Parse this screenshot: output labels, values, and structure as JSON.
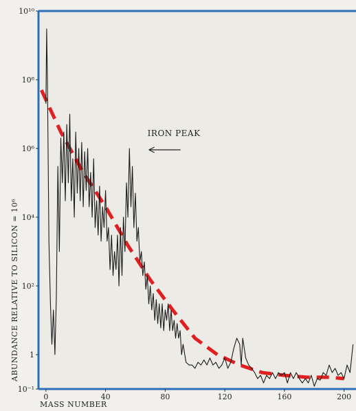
{
  "chart_data": {
    "type": "line",
    "title": "",
    "xlabel": "MASS NUMBER",
    "ylabel": "ABUNDANCE RELATIVE TO SILICON = 10⁶",
    "x_scale": "linear",
    "y_scale": "log",
    "xlim": [
      -5,
      208
    ],
    "ylim": [
      0.1,
      10000000000
    ],
    "grid": false,
    "x_ticks": [
      {
        "value": 0,
        "label": "0"
      },
      {
        "value": 40,
        "label": "40"
      },
      {
        "value": 80,
        "label": "80"
      },
      {
        "value": 120,
        "label": "120"
      },
      {
        "value": 160,
        "label": "160"
      },
      {
        "value": 200,
        "label": "200"
      }
    ],
    "y_ticks": [
      {
        "value": 0.1,
        "label": "10⁻¹"
      },
      {
        "value": 1,
        "label": "1"
      },
      {
        "value": 100,
        "label": "10²"
      },
      {
        "value": 10000,
        "label": "10⁴"
      },
      {
        "value": 1000000,
        "label": "10⁶"
      },
      {
        "value": 100000000,
        "label": "10⁸"
      },
      {
        "value": 10000000000,
        "label": "10¹⁰"
      }
    ],
    "series": [
      {
        "style": "solid",
        "color": "#1a1a1a",
        "points": [
          [
            0,
            20000000
          ],
          [
            0.5,
            3000000000
          ],
          [
            1,
            100000000
          ],
          [
            2,
            2000
          ],
          [
            3,
            30
          ],
          [
            4,
            2
          ],
          [
            5,
            20
          ],
          [
            6,
            1
          ],
          [
            7,
            50
          ],
          [
            8,
            300000
          ],
          [
            9,
            1000
          ],
          [
            10,
            2000000
          ],
          [
            11,
            100000
          ],
          [
            12,
            3000000
          ],
          [
            13,
            30000
          ],
          [
            14,
            5000000
          ],
          [
            15,
            100000
          ],
          [
            16,
            10000000
          ],
          [
            17,
            30000
          ],
          [
            18,
            500000
          ],
          [
            19,
            10000
          ],
          [
            20,
            3000000
          ],
          [
            21,
            50000
          ],
          [
            22,
            1000000
          ],
          [
            23,
            30000
          ],
          [
            24,
            1500000
          ],
          [
            25,
            20000
          ],
          [
            26,
            800000
          ],
          [
            27,
            60000
          ],
          [
            28,
            1000000
          ],
          [
            29,
            20000
          ],
          [
            30,
            200000
          ],
          [
            31,
            10000
          ],
          [
            32,
            500000
          ],
          [
            33,
            5000
          ],
          [
            34,
            30000
          ],
          [
            35,
            3000
          ],
          [
            36,
            80000
          ],
          [
            37,
            2000
          ],
          [
            38,
            20000
          ],
          [
            39,
            5000
          ],
          [
            40,
            60000
          ],
          [
            41,
            2000
          ],
          [
            42,
            5000
          ],
          [
            43,
            300
          ],
          [
            44,
            3000
          ],
          [
            45,
            200
          ],
          [
            46,
            1000
          ],
          [
            47,
            300
          ],
          [
            48,
            3000
          ],
          [
            49,
            100
          ],
          [
            50,
            5000
          ],
          [
            51,
            200
          ],
          [
            52,
            10000
          ],
          [
            53,
            1000
          ],
          [
            54,
            100000
          ],
          [
            55,
            10000
          ],
          [
            56,
            1000000
          ],
          [
            57,
            20000
          ],
          [
            58,
            300000
          ],
          [
            59,
            5000
          ],
          [
            60,
            50000
          ],
          [
            61,
            2000
          ],
          [
            62,
            5000
          ],
          [
            63,
            500
          ],
          [
            64,
            1000
          ],
          [
            65,
            200
          ],
          [
            66,
            500
          ],
          [
            67,
            80
          ],
          [
            68,
            200
          ],
          [
            69,
            30
          ],
          [
            70,
            100
          ],
          [
            71,
            20
          ],
          [
            72,
            60
          ],
          [
            73,
            10
          ],
          [
            74,
            40
          ],
          [
            75,
            8
          ],
          [
            76,
            30
          ],
          [
            77,
            6
          ],
          [
            78,
            30
          ],
          [
            79,
            5
          ],
          [
            80,
            20
          ],
          [
            81,
            10
          ],
          [
            82,
            30
          ],
          [
            83,
            5
          ],
          [
            84,
            20
          ],
          [
            85,
            5
          ],
          [
            86,
            10
          ],
          [
            87,
            3
          ],
          [
            88,
            8
          ],
          [
            89,
            3
          ],
          [
            90,
            5
          ],
          [
            91,
            1
          ],
          [
            92,
            2
          ],
          [
            94,
            0.6
          ],
          [
            96,
            0.5
          ],
          [
            98,
            0.5
          ],
          [
            100,
            0.4
          ],
          [
            102,
            0.6
          ],
          [
            104,
            0.5
          ],
          [
            106,
            0.7
          ],
          [
            108,
            0.5
          ],
          [
            110,
            0.8
          ],
          [
            112,
            0.5
          ],
          [
            114,
            0.6
          ],
          [
            116,
            0.4
          ],
          [
            118,
            0.5
          ],
          [
            120,
            0.8
          ],
          [
            122,
            0.4
          ],
          [
            124,
            0.6
          ],
          [
            126,
            1.5
          ],
          [
            128,
            3
          ],
          [
            130,
            2
          ],
          [
            131,
            0.5
          ],
          [
            132,
            3
          ],
          [
            134,
            0.8
          ],
          [
            136,
            0.5
          ],
          [
            138,
            0.4
          ],
          [
            140,
            0.3
          ],
          [
            142,
            0.2
          ],
          [
            144,
            0.25
          ],
          [
            146,
            0.15
          ],
          [
            148,
            0.25
          ],
          [
            150,
            0.2
          ],
          [
            152,
            0.3
          ],
          [
            154,
            0.2
          ],
          [
            156,
            0.3
          ],
          [
            158,
            0.25
          ],
          [
            160,
            0.3
          ],
          [
            162,
            0.15
          ],
          [
            164,
            0.3
          ],
          [
            166,
            0.2
          ],
          [
            168,
            0.3
          ],
          [
            170,
            0.2
          ],
          [
            172,
            0.15
          ],
          [
            174,
            0.2
          ],
          [
            176,
            0.15
          ],
          [
            178,
            0.25
          ],
          [
            180,
            0.12
          ],
          [
            182,
            0.2
          ],
          [
            184,
            0.18
          ],
          [
            186,
            0.3
          ],
          [
            188,
            0.25
          ],
          [
            190,
            0.5
          ],
          [
            192,
            0.3
          ],
          [
            194,
            0.4
          ],
          [
            196,
            0.25
          ],
          [
            198,
            0.3
          ],
          [
            200,
            0.2
          ],
          [
            202,
            0.5
          ],
          [
            204,
            0.3
          ],
          [
            206,
            2
          ]
        ]
      },
      {
        "style": "dashed",
        "color": "#e02020",
        "points": [
          [
            -3,
            50000000
          ],
          [
            10,
            3000000
          ],
          [
            25,
            200000
          ],
          [
            40,
            20000
          ],
          [
            55,
            1500
          ],
          [
            70,
            150
          ],
          [
            85,
            20
          ],
          [
            100,
            3
          ],
          [
            115,
            1
          ],
          [
            130,
            0.5
          ],
          [
            145,
            0.3
          ],
          [
            160,
            0.25
          ],
          [
            175,
            0.22
          ],
          [
            190,
            0.22
          ],
          [
            200,
            0.2
          ]
        ]
      }
    ],
    "annotations": [
      {
        "text": "IRON PEAK",
        "x": 70,
        "y": 1000000
      }
    ]
  }
}
